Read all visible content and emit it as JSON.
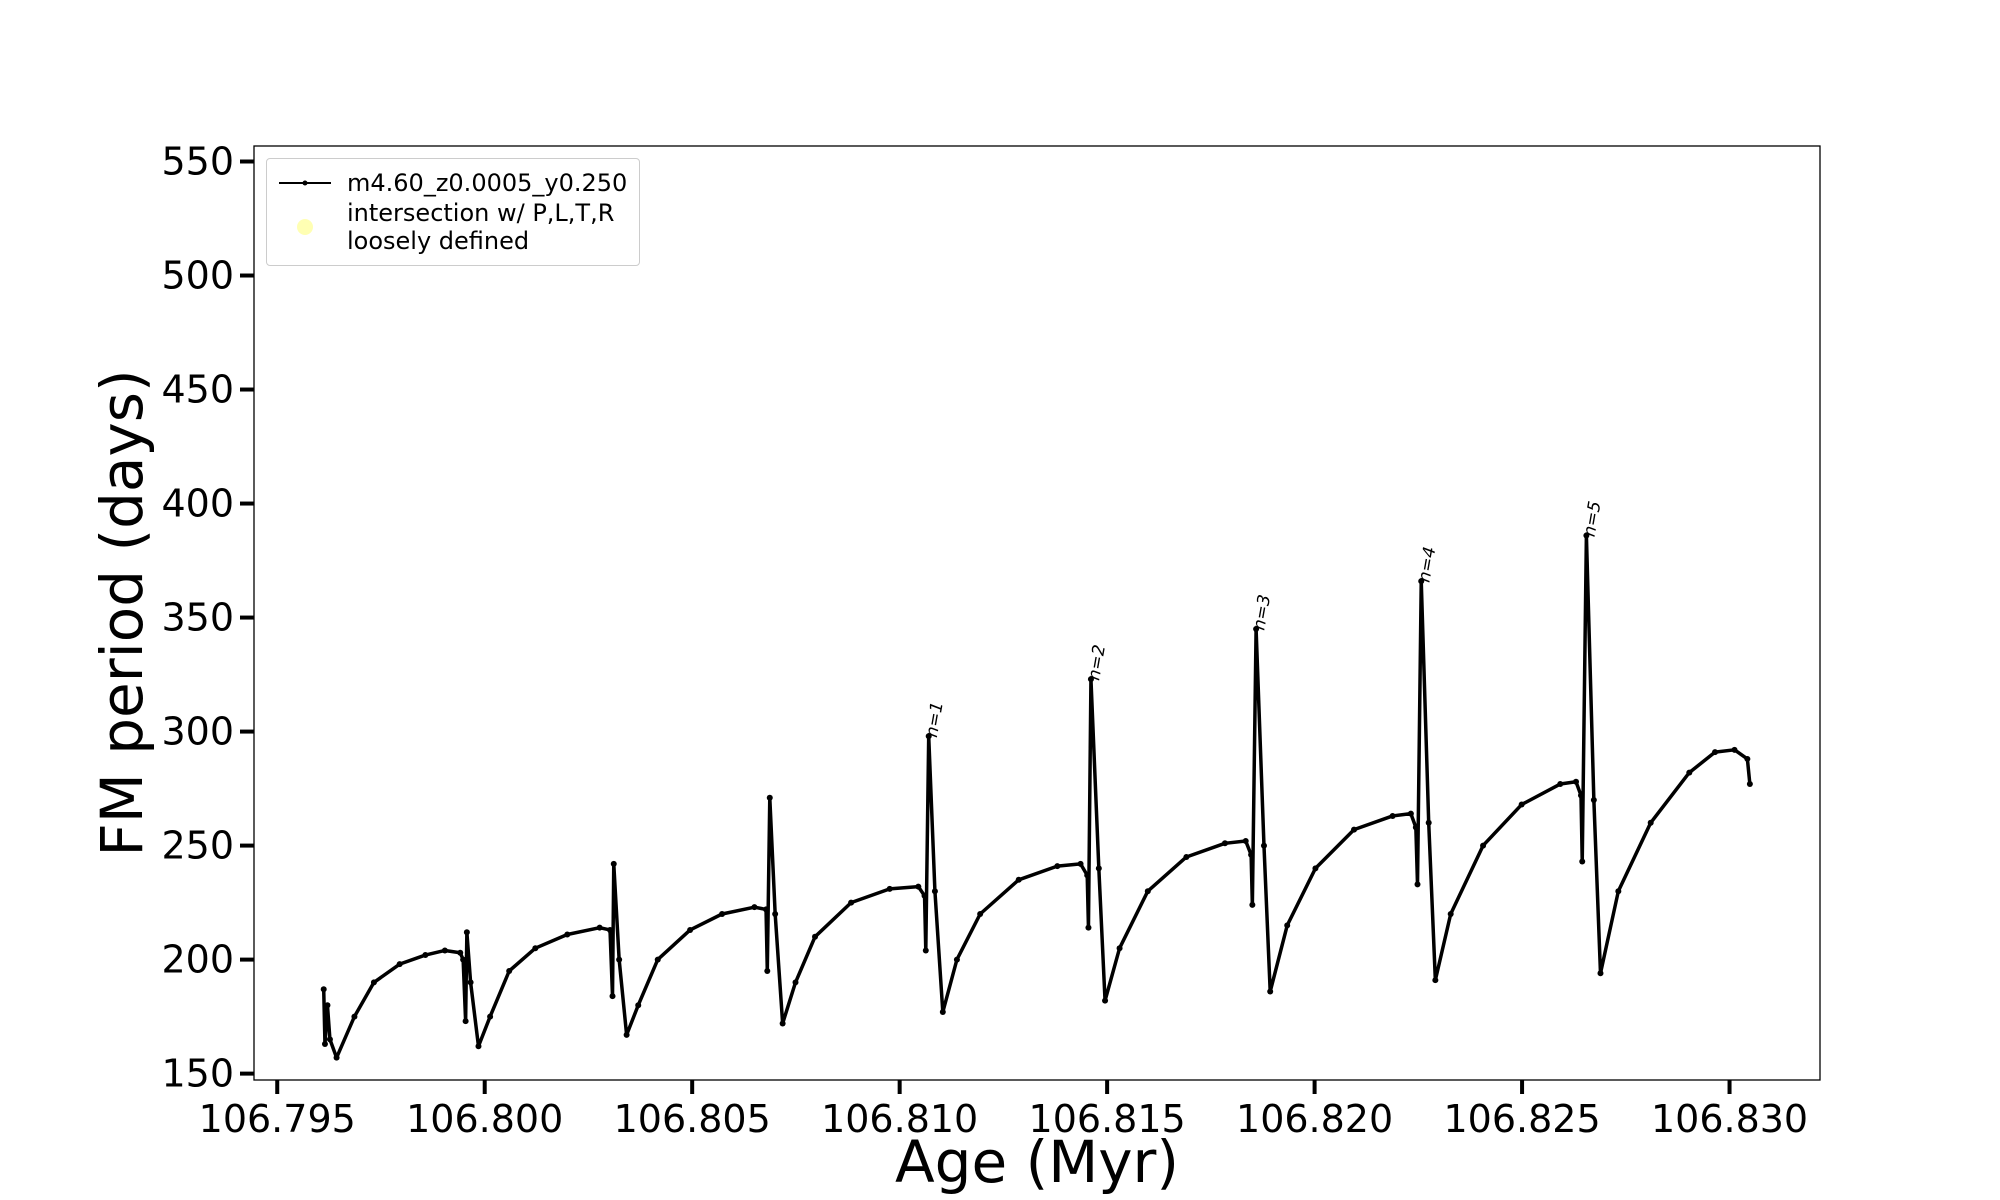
{
  "chart_data": {
    "type": "line",
    "xlabel": "Age (Myr)",
    "ylabel": "FM period (days)",
    "xlim": [
      106.79444,
      106.83218
    ],
    "ylim": [
      147.2,
      556.8
    ],
    "xticks": [
      106.795,
      {
        "value": 106.8,
        "label": "106.800"
      },
      106.805,
      {
        "value": 106.81,
        "label": "106.810"
      },
      106.815,
      {
        "value": 106.82,
        "label": "106.820"
      },
      106.825,
      {
        "value": 106.83,
        "label": "106.830"
      }
    ],
    "yticks": [
      150,
      200,
      250,
      300,
      350,
      400,
      450,
      500,
      550
    ],
    "legend": "upper left",
    "series": [
      {
        "name": "m4.60_z0.0005_y0.250",
        "color": "#000000",
        "x": [
          106.79612,
          106.79615,
          106.79621,
          106.79627,
          106.79643,
          106.79686,
          106.79733,
          106.79795,
          106.79857,
          106.79904,
          106.79941,
          106.79948,
          106.79954,
          106.79957,
          106.79966,
          106.79985,
          106.80013,
          106.80059,
          106.80122,
          106.80199,
          106.80277,
          106.80302,
          106.80308,
          106.80311,
          106.80324,
          106.80342,
          106.8037,
          106.80417,
          106.80495,
          106.80572,
          106.8065,
          106.80678,
          106.80681,
          106.80687,
          106.807,
          106.80718,
          106.80749,
          106.80796,
          106.80883,
          106.80976,
          106.81045,
          106.8106,
          106.81063,
          106.8107,
          106.81085,
          106.81104,
          106.81138,
          106.81194,
          106.81287,
          106.8138,
          106.81436,
          106.81452,
          106.81455,
          106.81461,
          106.8148,
          106.81495,
          106.8153,
          106.81598,
          106.81691,
          106.81784,
          106.81834,
          106.81847,
          106.8185,
          106.81859,
          106.81878,
          106.81893,
          106.81934,
          106.82002,
          106.82095,
          106.82188,
          106.82232,
          106.82244,
          106.82248,
          106.82257,
          106.82275,
          106.82291,
          106.82328,
          106.82406,
          106.82499,
          106.82592,
          106.8263,
          106.82642,
          106.82645,
          106.82655,
          106.82673,
          106.82689,
          106.82732,
          106.8281,
          106.82903,
          106.82965,
          106.83012,
          106.83043,
          106.83049
        ],
        "values": [
          187,
          163,
          180,
          165,
          157,
          175,
          190,
          198,
          202,
          204,
          203,
          200,
          173,
          212,
          190,
          162,
          175,
          195,
          205,
          211,
          214,
          213,
          184,
          242,
          200,
          167,
          180,
          200,
          213,
          220,
          223,
          222,
          195,
          271,
          220,
          172,
          190,
          210,
          225,
          231,
          232,
          228,
          204,
          298,
          230,
          177,
          200,
          220,
          235,
          241,
          242,
          237,
          214,
          323,
          240,
          182,
          205,
          230,
          245,
          251,
          252,
          246,
          224,
          345,
          250,
          186,
          215,
          240,
          257,
          263,
          264,
          258,
          233,
          366,
          260,
          191,
          220,
          250,
          268,
          277,
          278,
          272,
          243,
          386,
          270,
          194,
          230,
          260,
          282,
          291,
          292,
          288,
          277
        ]
      },
      {
        "name": "intersection w/ P,L,T,R\nloosely defined",
        "color": "#ffffb3",
        "marker": "circle",
        "x": [],
        "values": []
      }
    ],
    "annotations": [
      "n=1",
      "n=2",
      "n=3",
      "n=4",
      "n=5"
    ]
  }
}
